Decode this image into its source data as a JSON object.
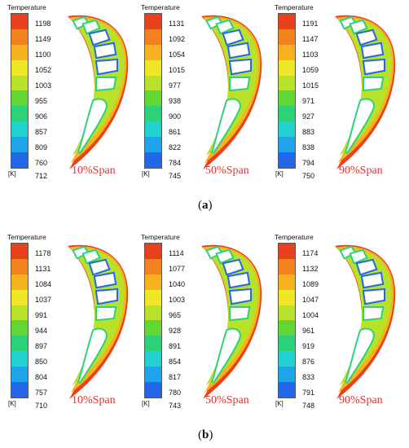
{
  "legend": {
    "title": "Temperature",
    "unit": "[K]"
  },
  "rows": [
    {
      "caption_open": "(",
      "caption_letter": "a",
      "caption_close": ")",
      "panels": [
        {
          "span": "10%Span",
          "ticks": [
            "1198",
            "1149",
            "1100",
            "1052",
            "1003",
            "955",
            "906",
            "857",
            "809",
            "760",
            "712"
          ]
        },
        {
          "span": "50%Span",
          "ticks": [
            "1131",
            "1092",
            "1054",
            "1015",
            "977",
            "938",
            "900",
            "861",
            "822",
            "784",
            "745"
          ]
        },
        {
          "span": "90%Span",
          "ticks": [
            "1191",
            "1147",
            "1103",
            "1059",
            "1015",
            "971",
            "927",
            "883",
            "838",
            "794",
            "750"
          ]
        }
      ]
    },
    {
      "caption_open": "(",
      "caption_letter": "b",
      "caption_close": ")",
      "panels": [
        {
          "span": "10%Span",
          "ticks": [
            "1178",
            "1131",
            "1084",
            "1037",
            "991",
            "944",
            "897",
            "850",
            "804",
            "757",
            "710"
          ]
        },
        {
          "span": "50%Span",
          "ticks": [
            "1114",
            "1077",
            "1040",
            "1003",
            "965",
            "928",
            "891",
            "854",
            "817",
            "780",
            "743"
          ]
        },
        {
          "span": "90%Span",
          "ticks": [
            "1174",
            "1132",
            "1089",
            "1047",
            "1004",
            "961",
            "919",
            "876",
            "833",
            "791",
            "748"
          ]
        }
      ]
    }
  ],
  "colors": {
    "scale": [
      "#e8421c",
      "#f2821e",
      "#f6b21f",
      "#eee626",
      "#b8e22a",
      "#62d633",
      "#2cd27a",
      "#22d2d0",
      "#1fa4ec",
      "#2266ea"
    ],
    "hot": "#e8421c",
    "warm": "#f6b21f",
    "mid": "#b8e22a",
    "cool": "#2cd27a",
    "cold": "#2266ea"
  }
}
